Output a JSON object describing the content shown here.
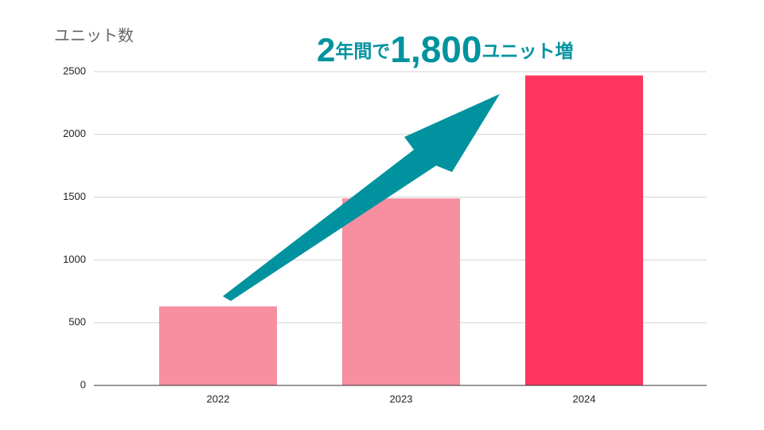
{
  "chart_data": {
    "type": "bar",
    "y_label": "ユニット数",
    "annotation": [
      "2",
      "年間で",
      "1,800",
      "ユニット増"
    ],
    "categories": [
      "2022",
      "2023",
      "2024"
    ],
    "values": [
      630,
      1490,
      2470
    ],
    "colors": [
      "#f78fa1",
      "#f78fa1",
      "#ff375e"
    ],
    "ylim": [
      0,
      2500
    ],
    "yticks": [
      0,
      500,
      1000,
      1500,
      2000,
      2500
    ],
    "grid": true
  }
}
